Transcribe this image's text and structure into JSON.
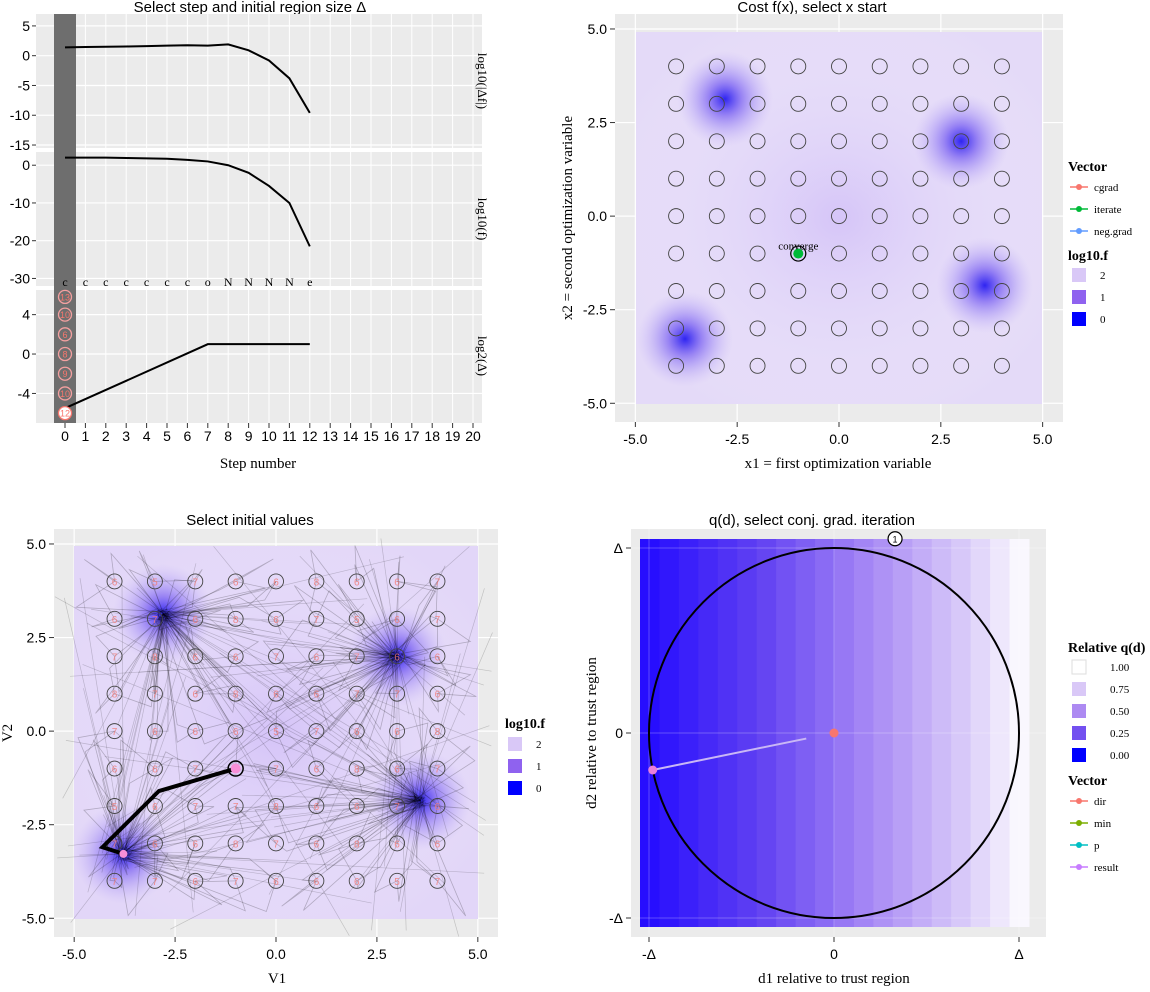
{
  "colors": {
    "panel_bg": "#ebebeb",
    "grid_line": "#ffffff",
    "step_band": "#6e6e6e",
    "purple_light": "#d9c8f7",
    "purple_mid": "#8f62ef",
    "blue_strong": "#0000ff",
    "cgrad": "#f8766d",
    "iterate": "#00ba38",
    "neg_grad": "#619cff",
    "dir": "#f8766d",
    "min": "#7cae00",
    "p": "#00bfc4",
    "result": "#c77cff"
  },
  "panel_steps": {
    "title": "Select step and initial region size Δ",
    "xlabel": "Step number",
    "x_ticks": [
      0,
      1,
      2,
      3,
      4,
      5,
      6,
      7,
      8,
      9,
      10,
      11,
      12,
      13,
      14,
      15,
      16,
      17,
      18,
      19,
      20
    ],
    "facets": [
      {
        "strip": "log10(|Δf|)",
        "y_ticks": [
          "5",
          "0",
          "-5",
          "-10",
          "-15"
        ],
        "y_values": [
          5,
          0,
          -5,
          -10,
          -15
        ],
        "ylim": [
          -15.5,
          7
        ],
        "line_x": [
          0,
          1,
          2,
          3,
          4,
          5,
          6,
          7,
          8,
          9,
          10,
          11,
          12
        ],
        "line_y": [
          1.4,
          1.45,
          1.5,
          1.55,
          1.6,
          1.7,
          1.75,
          1.7,
          1.9,
          0.9,
          -0.8,
          -3.8,
          -9.6
        ]
      },
      {
        "strip": "log10(f)",
        "y_ticks": [
          "0",
          "-10",
          "-20",
          "-30"
        ],
        "y_values": [
          0,
          -10,
          -20,
          -30
        ],
        "ylim": [
          -32,
          3.5
        ],
        "line_x": [
          0,
          1,
          2,
          3,
          4,
          5,
          6,
          7,
          8,
          9,
          10,
          11,
          12
        ],
        "line_y": [
          2,
          2,
          2,
          1.9,
          1.8,
          1.7,
          1.4,
          1.0,
          0,
          -2,
          -5.5,
          -10,
          -21.5
        ],
        "codes": [
          "c",
          "c",
          "c",
          "c",
          "c",
          "c",
          "c",
          "o",
          "N",
          "N",
          "N",
          "N",
          "e"
        ]
      },
      {
        "strip": "log2(Δ)",
        "y_ticks": [
          "4",
          "0",
          "-4"
        ],
        "y_values": [
          4,
          0,
          -4
        ],
        "ylim": [
          -7,
          6.5
        ],
        "line_x": [
          0,
          7,
          8,
          9,
          10,
          11,
          12
        ],
        "line_y": [
          -5.5,
          1,
          1,
          1,
          1,
          1,
          1
        ],
        "band_circles_y": [
          5.8,
          4,
          2,
          0,
          -2,
          -4,
          -6
        ],
        "band_labels": [
          "13",
          "10",
          "6",
          "8",
          "9",
          "10",
          "12"
        ]
      }
    ]
  },
  "panel_cost": {
    "title": "Cost f(x), select x start",
    "xlabel": "x1 = first optimization variable",
    "ylabel": "x2 = second optimization variable",
    "xlim": [
      -5.5,
      5.5
    ],
    "ylim": [
      -5.5,
      5.4
    ],
    "ticks": [
      "-5.0",
      "-2.5",
      "0.0",
      "2.5",
      "5.0"
    ],
    "tick_values": [
      -5,
      -2.5,
      0,
      2.5,
      5
    ],
    "minima": [
      [
        -2.8,
        3.13
      ],
      [
        3.0,
        2.0
      ],
      [
        -3.78,
        -3.28
      ],
      [
        3.58,
        -1.85
      ]
    ],
    "start_point": [
      -1,
      -1
    ],
    "start_label": "converge",
    "legend": {
      "vector_title": "Vector",
      "vector_items": [
        "cgrad",
        "iterate",
        "neg.grad"
      ],
      "fill_title": "log10.f",
      "fill_items": [
        "2",
        "1",
        "0"
      ]
    }
  },
  "panel_init": {
    "title": "Select initial values",
    "xlabel": "V1",
    "ylabel": "V2",
    "xlim": [
      -5.5,
      5.5
    ],
    "ylim": [
      -5.5,
      5.4
    ],
    "ticks": [
      "-5.0",
      "-2.5",
      "0.0",
      "2.5",
      "5.0"
    ],
    "tick_values": [
      -5,
      -2.5,
      0,
      2.5,
      5
    ],
    "cell_labels": [
      "6",
      "5",
      "7",
      "6",
      "6",
      "8",
      "6",
      "6",
      "7",
      "6",
      "7",
      "6",
      "8",
      "6",
      "7",
      "5",
      "6",
      "7",
      "7",
      "8",
      "6",
      "6",
      "7",
      "6",
      "7",
      "6",
      "6",
      "8",
      "7",
      "6",
      "8",
      "6",
      "6",
      "7",
      "7",
      "6",
      "7",
      "6",
      "6"
    ],
    "legend": {
      "fill_title": "log10.f",
      "fill_items": [
        "2",
        "1",
        "0"
      ]
    }
  },
  "panel_q": {
    "title": "q(d), select conj. grad. iteration",
    "xlabel": "d1 relative to trust region",
    "ylabel": "d2 relative to trust region",
    "x_ticks": [
      "-Δ",
      "0",
      "Δ"
    ],
    "y_ticks": [
      "Δ",
      "0",
      "-Δ"
    ],
    "marker_label": "1",
    "dir_point": [
      0,
      0
    ],
    "result_point": [
      -0.98,
      -0.2
    ],
    "marker_point": [
      0.33,
      1.05
    ],
    "legend": {
      "fill_title": "Relative q(d)",
      "fill_items": [
        "1.00",
        "0.75",
        "0.50",
        "0.25",
        "0.00"
      ],
      "vector_title": "Vector",
      "vector_items": [
        "dir",
        "min",
        "p",
        "result"
      ]
    }
  }
}
